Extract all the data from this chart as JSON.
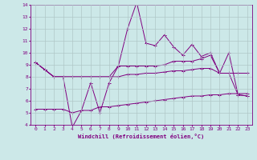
{
  "x": [
    0,
    1,
    2,
    3,
    4,
    5,
    6,
    7,
    8,
    9,
    10,
    11,
    12,
    13,
    14,
    15,
    16,
    17,
    18,
    19,
    20,
    21,
    22,
    23
  ],
  "line1": [
    9.2,
    8.6,
    8.0,
    8.0,
    3.8,
    5.2,
    7.5,
    5.0,
    7.5,
    8.9,
    12.0,
    14.2,
    10.8,
    10.6,
    11.5,
    10.5,
    9.8,
    10.7,
    9.7,
    10.0,
    8.3,
    10.0,
    6.5,
    6.4
  ],
  "line2": [
    9.2,
    8.6,
    8.0,
    8.0,
    8.0,
    8.0,
    8.0,
    8.0,
    8.0,
    8.9,
    8.9,
    8.9,
    8.9,
    8.9,
    9.0,
    9.3,
    9.3,
    9.3,
    9.5,
    9.8,
    8.3,
    8.3,
    8.3,
    8.3
  ],
  "line3": [
    9.2,
    8.6,
    8.0,
    8.0,
    8.0,
    8.0,
    8.0,
    8.0,
    8.0,
    8.0,
    8.2,
    8.2,
    8.3,
    8.3,
    8.4,
    8.5,
    8.5,
    8.6,
    8.7,
    8.7,
    8.3,
    8.3,
    6.5,
    6.4
  ],
  "line4": [
    5.3,
    5.3,
    5.3,
    5.3,
    5.0,
    5.2,
    5.2,
    5.5,
    5.5,
    5.6,
    5.7,
    5.8,
    5.9,
    6.0,
    6.1,
    6.2,
    6.3,
    6.4,
    6.4,
    6.5,
    6.5,
    6.6,
    6.6,
    6.6
  ],
  "bg_color": "#cce8e8",
  "line_color": "#800080",
  "grid_color": "#b0c8c8",
  "xlabel": "Windchill (Refroidissement éolien,°C)",
  "ylim": [
    4,
    14
  ],
  "xlim": [
    -0.5,
    23.5
  ],
  "yticks": [
    4,
    5,
    6,
    7,
    8,
    9,
    10,
    11,
    12,
    13,
    14
  ],
  "xticks": [
    0,
    1,
    2,
    3,
    4,
    5,
    6,
    7,
    8,
    9,
    10,
    11,
    12,
    13,
    14,
    15,
    16,
    17,
    18,
    19,
    20,
    21,
    22,
    23
  ]
}
